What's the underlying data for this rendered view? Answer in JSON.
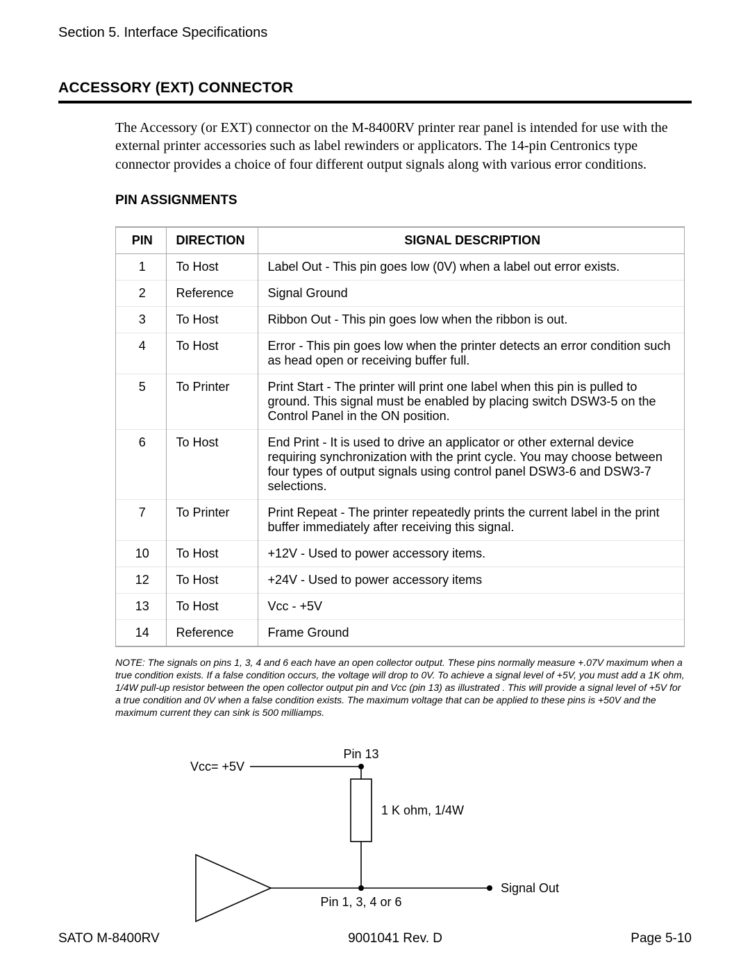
{
  "header": {
    "section_line": "Section 5. Interface Specifications",
    "main_title": "ACCESSORY (EXT) CONNECTOR"
  },
  "intro_text": "The Accessory (or EXT) connector on the M-8400RV printer rear panel is intended for use with the external printer accessories such as label rewinders or applicators. The 14-pin Centronics type connector provides a choice of four different output signals along with various error conditions.",
  "subheading": "PIN ASSIGNMENTS",
  "table": {
    "headers": {
      "pin": "PIN",
      "direction": "DIRECTION",
      "desc": "SIGNAL DESCRIPTION"
    },
    "rows": [
      {
        "pin": "1",
        "direction": "To Host",
        "desc": "Label Out - This pin goes low (0V) when a label out error exists."
      },
      {
        "pin": "2",
        "direction": "Reference",
        "desc": "Signal Ground"
      },
      {
        "pin": "3",
        "direction": "To Host",
        "desc": "Ribbon Out - This pin goes low when the ribbon is out."
      },
      {
        "pin": "4",
        "direction": "To Host",
        "desc": "Error - This pin goes low when the printer detects an error condition such as head open or receiving buffer full."
      },
      {
        "pin": "5",
        "direction": "To Printer",
        "desc": "Print Start - The printer will print one label when this pin is pulled to ground. This signal must be enabled by placing switch DSW3-5 on the Control Panel in the ON position."
      },
      {
        "pin": "6",
        "direction": "To Host",
        "desc": "End Print - It is used to drive an applicator or other external device requiring synchronization with the print cycle. You may choose between four types of output signals using control panel DSW3-6 and DSW3-7 selections."
      },
      {
        "pin": "7",
        "direction": "To Printer",
        "desc": "Print Repeat - The printer repeatedly prints the current label in the print buffer immediately after receiving this signal."
      },
      {
        "pin": "10",
        "direction": "To Host",
        "desc": "+12V - Used to power accessory items."
      },
      {
        "pin": "12",
        "direction": "To Host",
        "desc": "+24V - Used to power accessory items"
      },
      {
        "pin": "13",
        "direction": "To Host",
        "desc": "Vcc - +5V"
      },
      {
        "pin": "14",
        "direction": "Reference",
        "desc": "Frame Ground"
      }
    ]
  },
  "note": "NOTE: The signals on pins 1, 3, 4 and 6 each have an open collector output. These pins normally measure +.07V maximum when a true condition exists. If a false condition occurs, the voltage will drop to 0V. To achieve a signal level of +5V, you must add a 1K ohm, 1/4W pull-up resistor between the open collector output pin and Vcc (pin 13) as illustrated . This will provide a signal level of +5V for a true condition and 0V when a false condition exists. The maximum voltage that can be applied to these pins is +50V and the maximum current they can sink is 500 milliamps.",
  "diagram": {
    "labels": {
      "pin13": "Pin 13",
      "vcc": "Vcc= +5V",
      "resistor": "1 K ohm, 1/4W",
      "signal_out": "Signal Out",
      "bottom_pins": "Pin 1, 3, 4 or 6"
    },
    "style": {
      "stroke": "#000000",
      "stroke_width": 1.6,
      "dot_radius": 4,
      "resistor_w": 30,
      "resistor_h": 90,
      "font_size": 18
    }
  },
  "footer": {
    "left": "SATO M-8400RV",
    "center": "9001041  Rev. D",
    "right": "Page 5-10"
  },
  "colors": {
    "text": "#000000",
    "table_border_outer": "#a8a8a8",
    "table_border_inner": "#e6e6e6",
    "background": "#ffffff"
  }
}
